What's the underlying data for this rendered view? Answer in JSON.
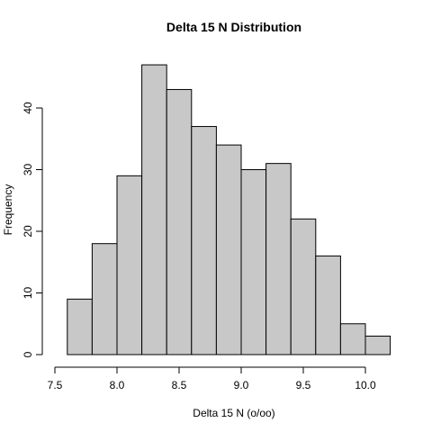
{
  "chart_data": {
    "type": "bar",
    "title": "Delta 15 N Distribution",
    "xlabel": "Delta 15 N (o/oo)",
    "ylabel": "Frequency",
    "bins": [
      {
        "start": 7.6,
        "end": 7.8,
        "count": 9
      },
      {
        "start": 7.8,
        "end": 8.0,
        "count": 18
      },
      {
        "start": 8.0,
        "end": 8.2,
        "count": 29
      },
      {
        "start": 8.2,
        "end": 8.4,
        "count": 47
      },
      {
        "start": 8.4,
        "end": 8.6,
        "count": 43
      },
      {
        "start": 8.6,
        "end": 8.8,
        "count": 37
      },
      {
        "start": 8.8,
        "end": 9.0,
        "count": 34
      },
      {
        "start": 9.0,
        "end": 9.2,
        "count": 30
      },
      {
        "start": 9.2,
        "end": 9.4,
        "count": 31
      },
      {
        "start": 9.4,
        "end": 9.6,
        "count": 22
      },
      {
        "start": 9.6,
        "end": 9.8,
        "count": 16
      },
      {
        "start": 9.8,
        "end": 10.0,
        "count": 5
      },
      {
        "start": 10.0,
        "end": 10.2,
        "count": 3
      }
    ],
    "xlim": [
      7.5,
      10.2
    ],
    "ylim": [
      0,
      47
    ],
    "xticks": [
      7.5,
      8.0,
      8.5,
      9.0,
      9.5,
      10.0
    ],
    "xtick_labels": [
      "7.5",
      "8.0",
      "8.5",
      "9.0",
      "9.5",
      "10.0"
    ],
    "yticks": [
      0,
      10,
      20,
      30,
      40
    ],
    "ytick_labels": [
      "0",
      "10",
      "20",
      "30",
      "40"
    ],
    "bar_color": "#c8c8c8",
    "edge_color": "#000000",
    "grid": false,
    "legend": "none"
  }
}
